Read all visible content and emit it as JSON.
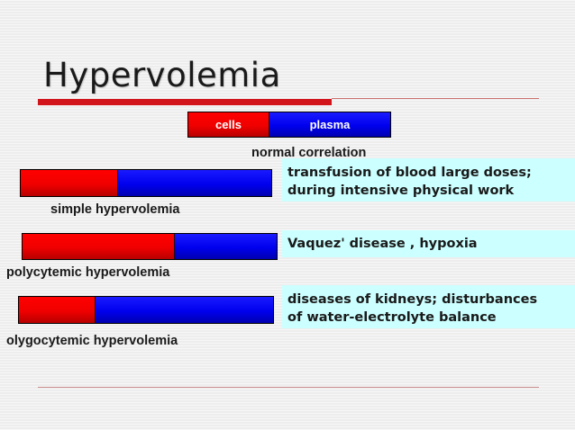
{
  "slide": {
    "title": "Hypervolemia"
  },
  "legend": {
    "cells_label": "cells",
    "plasma_label": "plasma",
    "cells_color": "#ff0000",
    "plasma_color": "#0000ee",
    "caption": "normal correlation",
    "cells_fraction": 0.4
  },
  "cases": [
    {
      "label": "simple hypervolemia",
      "cells_fraction": 0.39,
      "description": [
        "transfusion of blood large doses;",
        "during intensive physical work"
      ]
    },
    {
      "label": "polycytemic hypervolemia",
      "cells_fraction": 0.6,
      "description": [
        "Vaquez' disease , hypoxia"
      ]
    },
    {
      "label": "olygocytemic hypervolemia",
      "cells_fraction": 0.3,
      "description": [
        "diseases of kidneys; disturbances",
        "of water-electrolyte balance"
      ]
    }
  ],
  "colors": {
    "title_accent": "#d2141b",
    "description_background": "#ccffff"
  }
}
